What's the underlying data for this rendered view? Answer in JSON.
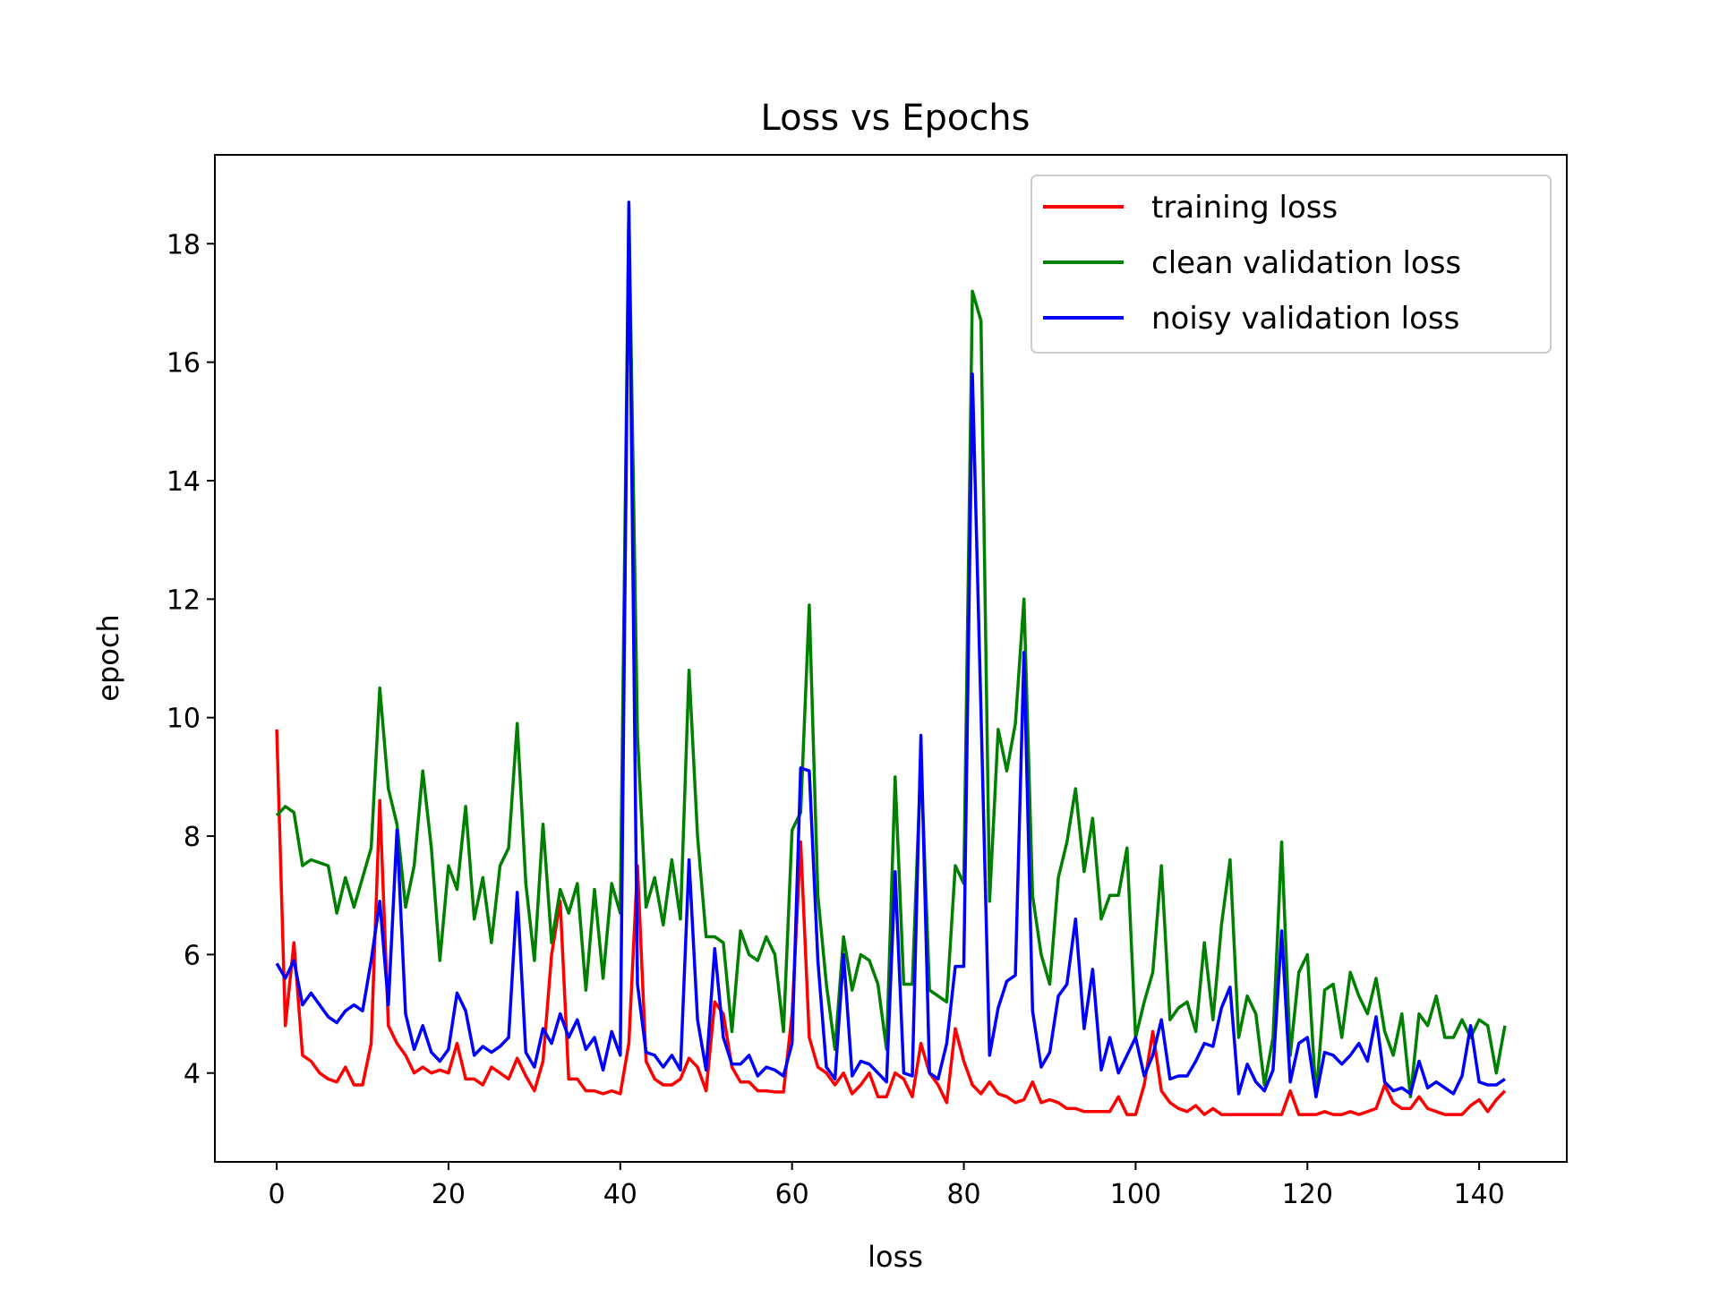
{
  "chart_data": {
    "type": "line",
    "title": "Loss vs Epochs",
    "xlabel": "loss",
    "ylabel": "epoch",
    "xlim": [
      -7.2,
      150.2
    ],
    "ylim": [
      2.5,
      19.5
    ],
    "xticks": [
      0,
      20,
      40,
      60,
      80,
      100,
      120,
      140
    ],
    "yticks": [
      4,
      6,
      8,
      10,
      12,
      14,
      16,
      18
    ],
    "grid": false,
    "legend_position": "top-right",
    "series": [
      {
        "name": "training loss",
        "color": "#ff0000",
        "values": [
          9.8,
          4.8,
          6.2,
          4.3,
          4.2,
          4.0,
          3.9,
          3.85,
          4.1,
          3.8,
          3.8,
          4.5,
          8.6,
          4.8,
          4.5,
          4.3,
          4.0,
          4.1,
          4.0,
          4.05,
          4.0,
          4.5,
          3.9,
          3.9,
          3.8,
          4.1,
          4.0,
          3.9,
          4.25,
          3.95,
          3.7,
          4.2,
          6.0,
          6.9,
          3.9,
          3.9,
          3.7,
          3.7,
          3.65,
          3.7,
          3.65,
          4.5,
          7.5,
          4.2,
          3.9,
          3.8,
          3.8,
          3.9,
          4.25,
          4.1,
          3.7,
          5.2,
          5.0,
          4.1,
          3.85,
          3.85,
          3.7,
          3.7,
          3.68,
          3.68,
          5.0,
          7.9,
          4.6,
          4.1,
          4.0,
          3.8,
          4.0,
          3.65,
          3.8,
          4.0,
          3.6,
          3.6,
          4.0,
          3.9,
          3.6,
          4.5,
          4.0,
          3.8,
          3.5,
          4.75,
          4.2,
          3.8,
          3.65,
          3.85,
          3.65,
          3.6,
          3.5,
          3.55,
          3.85,
          3.5,
          3.55,
          3.5,
          3.4,
          3.4,
          3.35,
          3.35,
          3.35,
          3.35,
          3.6,
          3.3,
          3.3,
          3.8,
          4.7,
          3.7,
          3.5,
          3.4,
          3.35,
          3.45,
          3.3,
          3.4,
          3.3,
          3.3,
          3.3,
          3.3,
          3.3,
          3.3,
          3.3,
          3.3,
          3.7,
          3.3,
          3.3,
          3.3,
          3.35,
          3.3,
          3.3,
          3.35,
          3.3,
          3.35,
          3.4,
          3.8,
          3.5,
          3.4,
          3.4,
          3.6,
          3.4,
          3.35,
          3.3,
          3.3,
          3.3,
          3.45,
          3.55,
          3.35,
          3.55,
          3.7
        ]
      },
      {
        "name": "clean validation loss",
        "color": "#008000",
        "values": [
          8.35,
          8.5,
          8.4,
          7.5,
          7.6,
          7.55,
          7.5,
          6.7,
          7.3,
          6.8,
          7.3,
          7.8,
          10.5,
          8.8,
          8.2,
          6.8,
          7.5,
          9.1,
          7.8,
          5.9,
          7.5,
          7.1,
          8.5,
          6.6,
          7.3,
          6.2,
          7.5,
          7.8,
          9.9,
          7.2,
          5.9,
          8.2,
          6.2,
          7.1,
          6.7,
          7.2,
          5.4,
          7.1,
          5.6,
          7.2,
          6.7,
          18.6,
          9.7,
          6.8,
          7.3,
          6.5,
          7.6,
          6.6,
          10.8,
          8.0,
          6.3,
          6.3,
          6.2,
          4.7,
          6.4,
          6.0,
          5.9,
          6.3,
          6.0,
          4.7,
          8.1,
          8.4,
          11.9,
          7.0,
          5.5,
          4.4,
          6.3,
          5.4,
          6.0,
          5.9,
          5.5,
          4.4,
          9.0,
          5.5,
          5.5,
          9.3,
          5.4,
          5.3,
          5.2,
          7.5,
          7.2,
          17.2,
          16.7,
          6.9,
          9.8,
          9.1,
          9.9,
          12.0,
          7.0,
          6.0,
          5.5,
          7.3,
          7.9,
          8.8,
          7.4,
          8.3,
          6.6,
          7.0,
          7.0,
          7.8,
          4.6,
          5.2,
          5.7,
          7.5,
          4.9,
          5.1,
          5.2,
          4.7,
          6.2,
          4.9,
          6.5,
          7.6,
          4.6,
          5.3,
          5.0,
          3.8,
          4.6,
          7.9,
          4.3,
          5.7,
          6.0,
          3.6,
          5.4,
          5.5,
          4.6,
          5.7,
          5.3,
          5.0,
          5.6,
          4.7,
          4.3,
          5.0,
          3.6,
          5.0,
          4.8,
          5.3,
          4.6,
          4.6,
          4.9,
          4.6,
          4.9,
          4.8,
          4.0,
          4.8
        ]
      },
      {
        "name": "noisy validation loss",
        "color": "#0000ff",
        "values": [
          5.85,
          5.6,
          5.9,
          5.15,
          5.35,
          5.15,
          4.95,
          4.85,
          5.05,
          5.15,
          5.05,
          5.9,
          6.9,
          5.15,
          8.1,
          5.0,
          4.4,
          4.8,
          4.35,
          4.2,
          4.4,
          5.35,
          5.05,
          4.3,
          4.45,
          4.35,
          4.45,
          4.6,
          7.05,
          4.35,
          4.1,
          4.75,
          4.5,
          5.0,
          4.6,
          4.9,
          4.4,
          4.6,
          4.05,
          4.7,
          4.3,
          18.7,
          5.5,
          4.35,
          4.3,
          4.1,
          4.3,
          4.05,
          7.6,
          4.9,
          4.05,
          6.1,
          4.6,
          4.15,
          4.15,
          4.3,
          3.95,
          4.1,
          4.05,
          3.95,
          4.5,
          9.15,
          9.1,
          5.9,
          4.1,
          3.9,
          6.0,
          3.95,
          4.2,
          4.15,
          4.0,
          3.85,
          7.4,
          4.0,
          3.95,
          9.7,
          4.0,
          3.9,
          4.5,
          5.8,
          5.8,
          15.8,
          10.1,
          4.3,
          5.1,
          5.55,
          5.65,
          11.1,
          5.05,
          4.1,
          4.35,
          5.3,
          5.5,
          6.6,
          4.75,
          5.75,
          4.05,
          4.6,
          4.0,
          4.3,
          4.6,
          3.95,
          4.3,
          4.9,
          3.9,
          3.95,
          3.95,
          4.2,
          4.5,
          4.45,
          5.1,
          5.45,
          3.65,
          4.15,
          3.85,
          3.7,
          4.05,
          6.4,
          3.85,
          4.5,
          4.6,
          3.6,
          4.35,
          4.3,
          4.15,
          4.3,
          4.5,
          4.2,
          4.95,
          3.85,
          3.7,
          3.75,
          3.65,
          4.2,
          3.75,
          3.85,
          3.75,
          3.65,
          3.95,
          4.8,
          3.85,
          3.8,
          3.8,
          3.9
        ]
      }
    ]
  }
}
